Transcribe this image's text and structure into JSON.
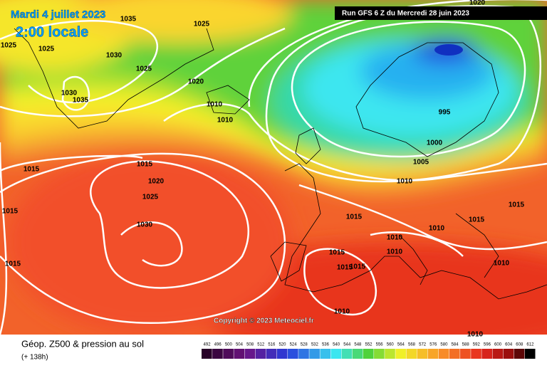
{
  "header": {
    "date": "Mardi 4 juillet 2023",
    "local_time": "2:00 locale",
    "run": "Run GFS 6 Z du Mercredi 28 juin 2023"
  },
  "copyright": "Copyright © 2023 Meteociel.fr",
  "footer": {
    "title": "Géop. Z500 & pression au sol",
    "lead_time": "(+ 138h)"
  },
  "isobar_labels": [
    1035,
    1025,
    1025,
    1025,
    1030,
    1025,
    1020,
    1030,
    1035,
    1010,
    1010,
    995,
    1000,
    1005,
    1015,
    1015,
    1020,
    1025,
    1010,
    1015,
    1015,
    1030,
    1015,
    1015,
    1010,
    1010,
    1015,
    1010,
    1015,
    1015,
    1015,
    1010,
    1010,
    1010,
    1020
  ],
  "colorbar": {
    "labels": [
      492,
      496,
      500,
      504,
      508,
      512,
      516,
      520,
      524,
      528,
      532,
      536,
      540,
      544,
      548,
      552,
      556,
      560,
      564,
      568,
      572,
      576,
      580,
      584,
      588,
      592,
      596,
      600,
      604,
      608,
      612
    ]
  }
}
